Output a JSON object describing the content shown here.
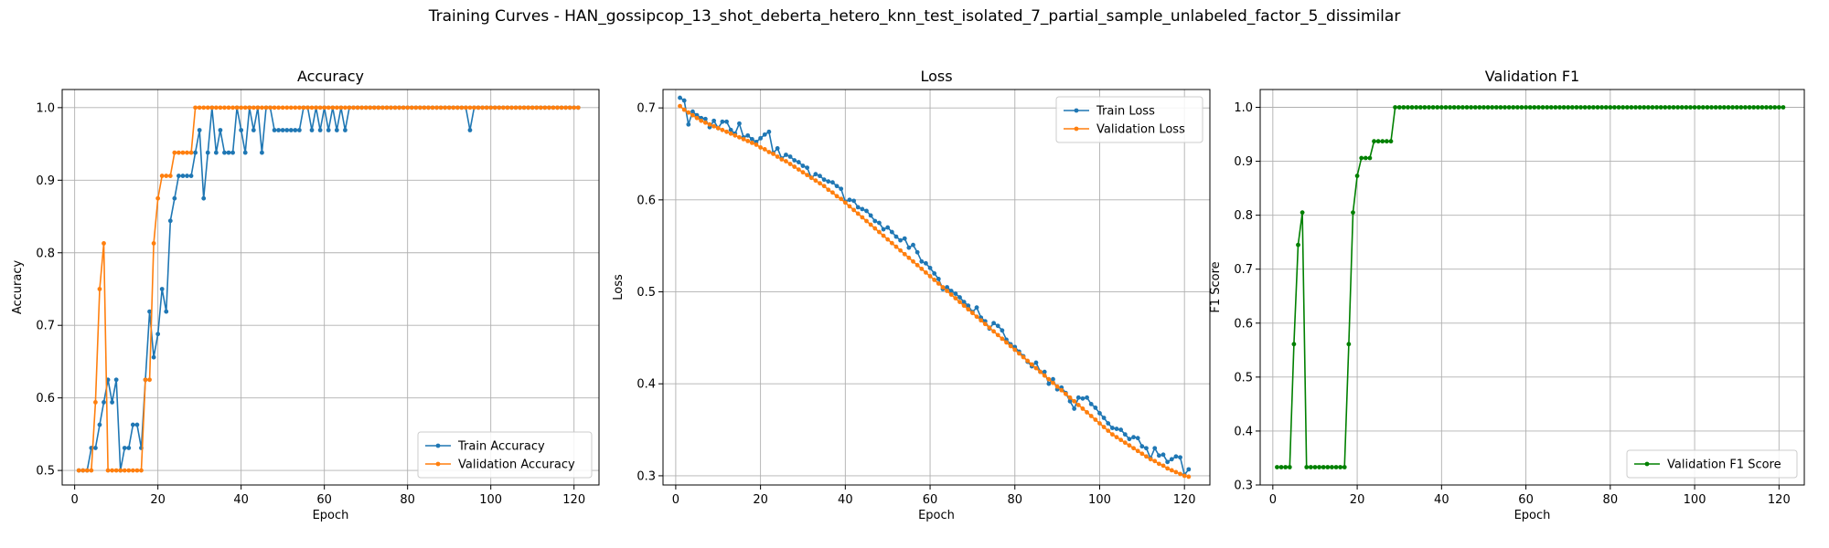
{
  "figure": {
    "title": "Training Curves - HAN_gossipcop_13_shot_deberta_hetero_knn_test_isolated_7_partial_sample_unlabeled_factor_5_dissimilar"
  },
  "chart_data": [
    {
      "type": "line",
      "title": "Accuracy",
      "xlabel": "Epoch",
      "ylabel": "Accuracy",
      "xlim": [
        -3,
        126
      ],
      "ylim": [
        0.48,
        1.025
      ],
      "xticks": [
        0,
        20,
        40,
        60,
        80,
        100,
        120
      ],
      "yticks": [
        0.5,
        0.6,
        0.7,
        0.8,
        0.9,
        1.0
      ],
      "ytick_labels": [
        "0.5",
        "0.6",
        "0.7",
        "0.8",
        "0.9",
        "1.0"
      ],
      "grid": true,
      "legend_position": "lower-right",
      "x": [
        1,
        2,
        3,
        4,
        5,
        6,
        7,
        8,
        9,
        10,
        11,
        12,
        13,
        14,
        15,
        16,
        17,
        18,
        19,
        20,
        21,
        22,
        23,
        24,
        25,
        26,
        27,
        28,
        29,
        30,
        31,
        32,
        33,
        34,
        35,
        36,
        37,
        38,
        39,
        40,
        41,
        42,
        43,
        44,
        45,
        46,
        47,
        48,
        49,
        50,
        51,
        52,
        53,
        54,
        55,
        56,
        57,
        58,
        59,
        60,
        61,
        62,
        63,
        64,
        65,
        66,
        67,
        68,
        69,
        70,
        71,
        72,
        73,
        74,
        75,
        76,
        77,
        78,
        79,
        80,
        81,
        82,
        83,
        84,
        85,
        86,
        87,
        88,
        89,
        90,
        91,
        92,
        93,
        94,
        95,
        96,
        97,
        98,
        99,
        100,
        101,
        102,
        103,
        104,
        105,
        106,
        107,
        108,
        109,
        110,
        111,
        112,
        113,
        114,
        115,
        116,
        117,
        118,
        119,
        120,
        121
      ],
      "series": [
        {
          "name": "Train Accuracy",
          "color": "#1f77b4",
          "values": [
            0.5,
            0.5,
            0.5,
            0.531,
            0.531,
            0.563,
            0.594,
            0.625,
            0.594,
            0.625,
            0.5,
            0.531,
            0.531,
            0.563,
            0.563,
            0.531,
            0.625,
            0.719,
            0.656,
            0.688,
            0.75,
            0.719,
            0.844,
            0.875,
            0.906,
            0.906,
            0.906,
            0.906,
            0.938,
            0.969,
            0.875,
            0.938,
            1.0,
            0.938,
            0.969,
            0.938,
            0.938,
            0.938,
            1.0,
            0.969,
            0.938,
            1.0,
            0.969,
            1.0,
            0.938,
            1.0,
            1.0,
            0.969,
            0.969,
            0.969,
            0.969,
            0.969,
            0.969,
            0.969,
            1.0,
            1.0,
            0.969,
            1.0,
            0.969,
            1.0,
            0.969,
            1.0,
            0.969,
            1.0,
            0.969,
            1.0,
            1.0,
            1.0,
            1.0,
            1.0,
            1.0,
            1.0,
            1.0,
            1.0,
            1.0,
            1.0,
            1.0,
            1.0,
            1.0,
            1.0,
            1.0,
            1.0,
            1.0,
            1.0,
            1.0,
            1.0,
            1.0,
            1.0,
            1.0,
            1.0,
            1.0,
            1.0,
            1.0,
            1.0,
            0.969,
            1.0,
            1.0,
            1.0,
            1.0,
            1.0,
            1.0,
            1.0,
            1.0,
            1.0,
            1.0,
            1.0,
            1.0,
            1.0,
            1.0,
            1.0,
            1.0,
            1.0,
            1.0,
            1.0,
            1.0,
            1.0,
            1.0,
            1.0,
            1.0,
            1.0,
            1.0
          ]
        },
        {
          "name": "Validation Accuracy",
          "color": "#ff7f0e",
          "values": [
            0.5,
            0.5,
            0.5,
            0.5,
            0.594,
            0.75,
            0.813,
            0.5,
            0.5,
            0.5,
            0.5,
            0.5,
            0.5,
            0.5,
            0.5,
            0.5,
            0.625,
            0.625,
            0.813,
            0.875,
            0.906,
            0.906,
            0.906,
            0.938,
            0.938,
            0.938,
            0.938,
            0.938,
            1.0,
            1.0,
            1.0,
            1.0,
            1.0,
            1.0,
            1.0,
            1.0,
            1.0,
            1.0,
            1.0,
            1.0,
            1.0,
            1.0,
            1.0,
            1.0,
            1.0,
            1.0,
            1.0,
            1.0,
            1.0,
            1.0,
            1.0,
            1.0,
            1.0,
            1.0,
            1.0,
            1.0,
            1.0,
            1.0,
            1.0,
            1.0,
            1.0,
            1.0,
            1.0,
            1.0,
            1.0,
            1.0,
            1.0,
            1.0,
            1.0,
            1.0,
            1.0,
            1.0,
            1.0,
            1.0,
            1.0,
            1.0,
            1.0,
            1.0,
            1.0,
            1.0,
            1.0,
            1.0,
            1.0,
            1.0,
            1.0,
            1.0,
            1.0,
            1.0,
            1.0,
            1.0,
            1.0,
            1.0,
            1.0,
            1.0,
            1.0,
            1.0,
            1.0,
            1.0,
            1.0,
            1.0,
            1.0,
            1.0,
            1.0,
            1.0,
            1.0,
            1.0,
            1.0,
            1.0,
            1.0,
            1.0,
            1.0,
            1.0,
            1.0,
            1.0,
            1.0,
            1.0,
            1.0,
            1.0,
            1.0,
            1.0,
            1.0
          ]
        }
      ]
    },
    {
      "type": "line",
      "title": "Loss",
      "xlabel": "Epoch",
      "ylabel": "Loss",
      "xlim": [
        -3,
        126
      ],
      "ylim": [
        0.29,
        0.72
      ],
      "xticks": [
        0,
        20,
        40,
        60,
        80,
        100,
        120
      ],
      "yticks": [
        0.3,
        0.4,
        0.5,
        0.6,
        0.7
      ],
      "ytick_labels": [
        "0.3",
        "0.4",
        "0.5",
        "0.6",
        "0.7"
      ],
      "grid": true,
      "legend_position": "upper-right",
      "x": [
        1,
        2,
        3,
        4,
        5,
        6,
        7,
        8,
        9,
        10,
        11,
        12,
        13,
        14,
        15,
        16,
        17,
        18,
        19,
        20,
        21,
        22,
        23,
        24,
        25,
        26,
        27,
        28,
        29,
        30,
        31,
        32,
        33,
        34,
        35,
        36,
        37,
        38,
        39,
        40,
        41,
        42,
        43,
        44,
        45,
        46,
        47,
        48,
        49,
        50,
        51,
        52,
        53,
        54,
        55,
        56,
        57,
        58,
        59,
        60,
        61,
        62,
        63,
        64,
        65,
        66,
        67,
        68,
        69,
        70,
        71,
        72,
        73,
        74,
        75,
        76,
        77,
        78,
        79,
        80,
        81,
        82,
        83,
        84,
        85,
        86,
        87,
        88,
        89,
        90,
        91,
        92,
        93,
        94,
        95,
        96,
        97,
        98,
        99,
        100,
        101,
        102,
        103,
        104,
        105,
        106,
        107,
        108,
        109,
        110,
        111,
        112,
        113,
        114,
        115,
        116,
        117,
        118,
        119,
        120,
        121
      ],
      "series": [
        {
          "name": "Train Loss",
          "color": "#1f77b4",
          "values": [
            0.711,
            0.708,
            0.682,
            0.696,
            0.692,
            0.689,
            0.688,
            0.679,
            0.686,
            0.678,
            0.685,
            0.685,
            0.676,
            0.672,
            0.683,
            0.668,
            0.67,
            0.666,
            0.663,
            0.667,
            0.671,
            0.674,
            0.651,
            0.656,
            0.645,
            0.649,
            0.647,
            0.643,
            0.641,
            0.637,
            0.635,
            0.624,
            0.628,
            0.626,
            0.622,
            0.62,
            0.619,
            0.615,
            0.612,
            0.598,
            0.6,
            0.599,
            0.592,
            0.59,
            0.588,
            0.583,
            0.577,
            0.575,
            0.568,
            0.57,
            0.565,
            0.56,
            0.556,
            0.558,
            0.548,
            0.551,
            0.543,
            0.533,
            0.531,
            0.526,
            0.52,
            0.514,
            0.503,
            0.505,
            0.501,
            0.498,
            0.494,
            0.489,
            0.485,
            0.478,
            0.483,
            0.472,
            0.468,
            0.46,
            0.466,
            0.463,
            0.458,
            0.448,
            0.443,
            0.44,
            0.435,
            0.43,
            0.424,
            0.419,
            0.423,
            0.413,
            0.413,
            0.4,
            0.405,
            0.394,
            0.396,
            0.39,
            0.381,
            0.373,
            0.385,
            0.384,
            0.385,
            0.378,
            0.374,
            0.368,
            0.363,
            0.357,
            0.352,
            0.351,
            0.35,
            0.345,
            0.34,
            0.342,
            0.341,
            0.332,
            0.33,
            0.319,
            0.33,
            0.322,
            0.323,
            0.315,
            0.318,
            0.321,
            0.32,
            0.301,
            0.307
          ]
        },
        {
          "name": "Validation Loss",
          "color": "#ff7f0e",
          "values": [
            0.702,
            0.698,
            0.695,
            0.692,
            0.689,
            0.686,
            0.684,
            0.682,
            0.68,
            0.678,
            0.676,
            0.674,
            0.672,
            0.67,
            0.668,
            0.666,
            0.664,
            0.662,
            0.66,
            0.657,
            0.655,
            0.652,
            0.65,
            0.647,
            0.644,
            0.642,
            0.639,
            0.636,
            0.633,
            0.63,
            0.627,
            0.624,
            0.621,
            0.618,
            0.615,
            0.611,
            0.608,
            0.604,
            0.601,
            0.597,
            0.593,
            0.589,
            0.585,
            0.581,
            0.577,
            0.573,
            0.569,
            0.565,
            0.561,
            0.557,
            0.553,
            0.549,
            0.545,
            0.541,
            0.537,
            0.533,
            0.529,
            0.525,
            0.521,
            0.517,
            0.513,
            0.509,
            0.505,
            0.501,
            0.497,
            0.493,
            0.489,
            0.485,
            0.481,
            0.477,
            0.473,
            0.469,
            0.465,
            0.461,
            0.457,
            0.453,
            0.449,
            0.445,
            0.441,
            0.437,
            0.433,
            0.429,
            0.425,
            0.421,
            0.417,
            0.413,
            0.409,
            0.405,
            0.401,
            0.397,
            0.393,
            0.389,
            0.385,
            0.381,
            0.377,
            0.373,
            0.369,
            0.365,
            0.361,
            0.357,
            0.353,
            0.349,
            0.345,
            0.342,
            0.339,
            0.336,
            0.333,
            0.33,
            0.327,
            0.324,
            0.321,
            0.318,
            0.316,
            0.313,
            0.311,
            0.308,
            0.306,
            0.304,
            0.302,
            0.3,
            0.299
          ]
        }
      ]
    },
    {
      "type": "line",
      "title": "Validation F1",
      "xlabel": "Epoch",
      "ylabel": "F1 Score",
      "xlim": [
        -3,
        126
      ],
      "ylim": [
        0.3,
        1.033
      ],
      "xticks": [
        0,
        20,
        40,
        60,
        80,
        100,
        120
      ],
      "yticks": [
        0.3,
        0.4,
        0.5,
        0.6,
        0.7,
        0.8,
        0.9,
        1.0
      ],
      "ytick_labels": [
        "0.3",
        "0.4",
        "0.5",
        "0.6",
        "0.7",
        "0.8",
        "0.9",
        "1.0"
      ],
      "grid": true,
      "legend_position": "lower-right",
      "x": [
        1,
        2,
        3,
        4,
        5,
        6,
        7,
        8,
        9,
        10,
        11,
        12,
        13,
        14,
        15,
        16,
        17,
        18,
        19,
        20,
        21,
        22,
        23,
        24,
        25,
        26,
        27,
        28,
        29,
        30,
        31,
        32,
        33,
        34,
        35,
        36,
        37,
        38,
        39,
        40,
        41,
        42,
        43,
        44,
        45,
        46,
        47,
        48,
        49,
        50,
        51,
        52,
        53,
        54,
        55,
        56,
        57,
        58,
        59,
        60,
        61,
        62,
        63,
        64,
        65,
        66,
        67,
        68,
        69,
        70,
        71,
        72,
        73,
        74,
        75,
        76,
        77,
        78,
        79,
        80,
        81,
        82,
        83,
        84,
        85,
        86,
        87,
        88,
        89,
        90,
        91,
        92,
        93,
        94,
        95,
        96,
        97,
        98,
        99,
        100,
        101,
        102,
        103,
        104,
        105,
        106,
        107,
        108,
        109,
        110,
        111,
        112,
        113,
        114,
        115,
        116,
        117,
        118,
        119,
        120,
        121
      ],
      "series": [
        {
          "name": "Validation F1 Score",
          "color": "#008000",
          "values": [
            0.333,
            0.333,
            0.333,
            0.333,
            0.561,
            0.745,
            0.805,
            0.333,
            0.333,
            0.333,
            0.333,
            0.333,
            0.333,
            0.333,
            0.333,
            0.333,
            0.333,
            0.561,
            0.805,
            0.873,
            0.906,
            0.906,
            0.906,
            0.937,
            0.937,
            0.937,
            0.937,
            0.937,
            1.0,
            1.0,
            1.0,
            1.0,
            1.0,
            1.0,
            1.0,
            1.0,
            1.0,
            1.0,
            1.0,
            1.0,
            1.0,
            1.0,
            1.0,
            1.0,
            1.0,
            1.0,
            1.0,
            1.0,
            1.0,
            1.0,
            1.0,
            1.0,
            1.0,
            1.0,
            1.0,
            1.0,
            1.0,
            1.0,
            1.0,
            1.0,
            1.0,
            1.0,
            1.0,
            1.0,
            1.0,
            1.0,
            1.0,
            1.0,
            1.0,
            1.0,
            1.0,
            1.0,
            1.0,
            1.0,
            1.0,
            1.0,
            1.0,
            1.0,
            1.0,
            1.0,
            1.0,
            1.0,
            1.0,
            1.0,
            1.0,
            1.0,
            1.0,
            1.0,
            1.0,
            1.0,
            1.0,
            1.0,
            1.0,
            1.0,
            1.0,
            1.0,
            1.0,
            1.0,
            1.0,
            1.0,
            1.0,
            1.0,
            1.0,
            1.0,
            1.0,
            1.0,
            1.0,
            1.0,
            1.0,
            1.0,
            1.0,
            1.0,
            1.0,
            1.0,
            1.0,
            1.0,
            1.0,
            1.0,
            1.0,
            1.0,
            1.0
          ]
        }
      ]
    }
  ]
}
